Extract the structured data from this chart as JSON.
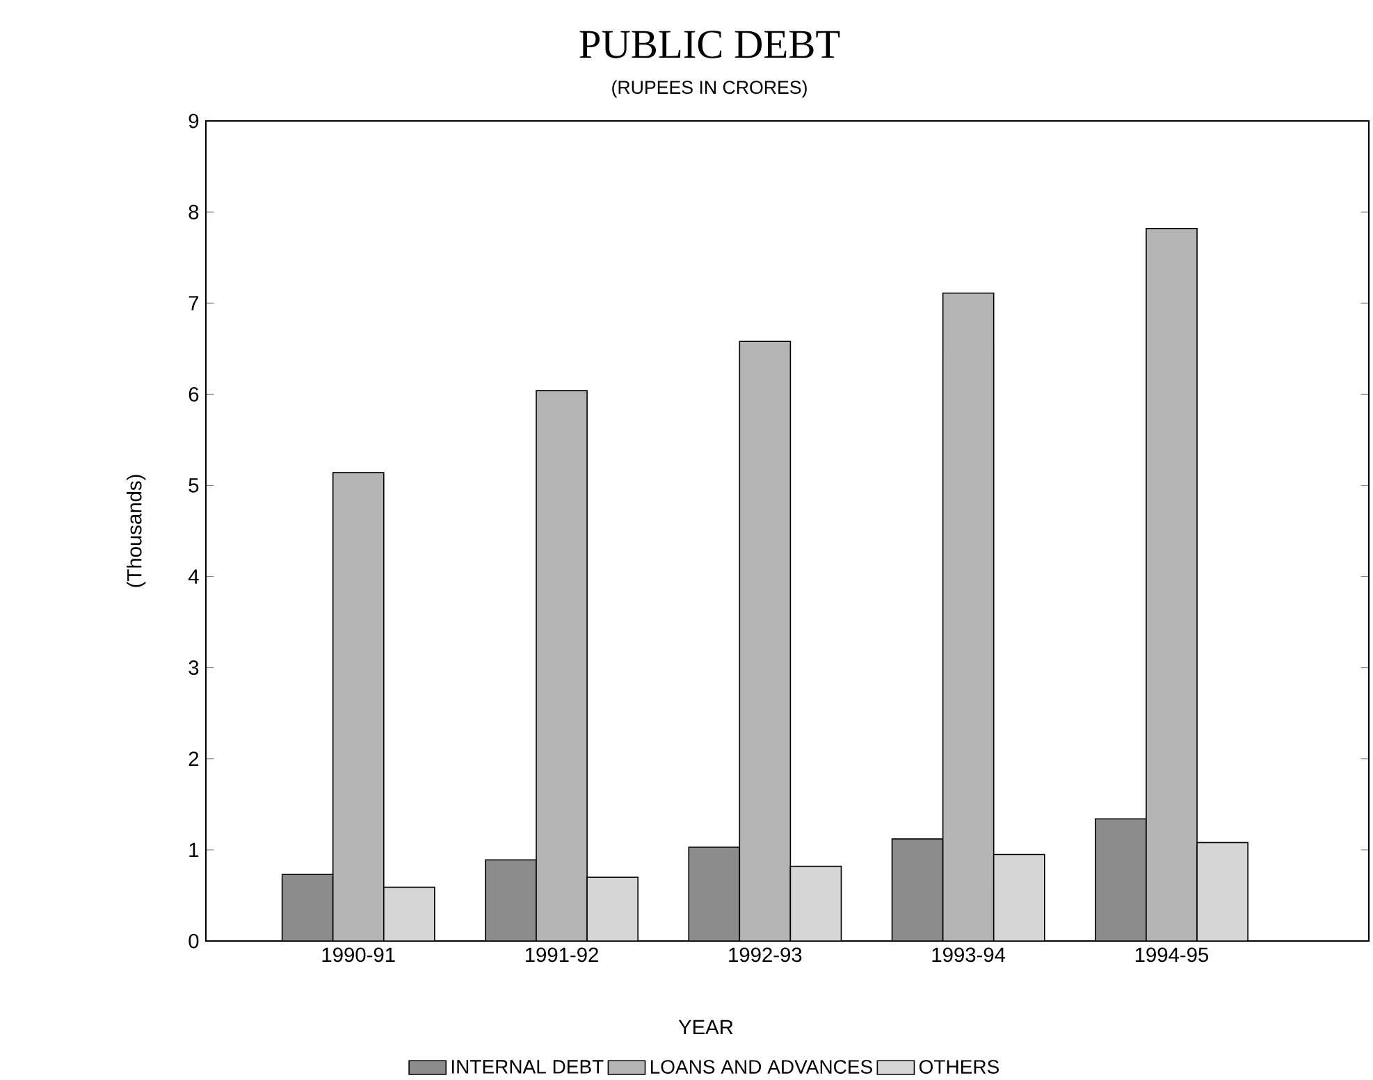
{
  "chart_data": {
    "type": "bar",
    "title": "PUBLIC DEBT",
    "subtitle": "(RUPEES IN CRORES)",
    "xlabel": "YEAR",
    "ylabel": "(Thousands)",
    "categories": [
      "1990-91",
      "1991-92",
      "1992-93",
      "1993-94",
      "1994-95"
    ],
    "series": [
      {
        "name": "INTERNAL DEBT",
        "color": "#8c8c8c",
        "values": [
          0.73,
          0.89,
          1.03,
          1.12,
          1.34
        ]
      },
      {
        "name": "LOANS AND ADVANCES",
        "color": "#b4b4b4",
        "values": [
          5.14,
          6.04,
          6.58,
          7.11,
          7.82
        ]
      },
      {
        "name": "OTHERS",
        "color": "#d6d6d6",
        "values": [
          0.59,
          0.7,
          0.82,
          0.95,
          1.08
        ]
      }
    ],
    "ylim": [
      0,
      9
    ],
    "yticks": [
      0,
      1,
      2,
      3,
      4,
      5,
      6,
      7,
      8,
      9
    ],
    "legend": "bottom"
  }
}
